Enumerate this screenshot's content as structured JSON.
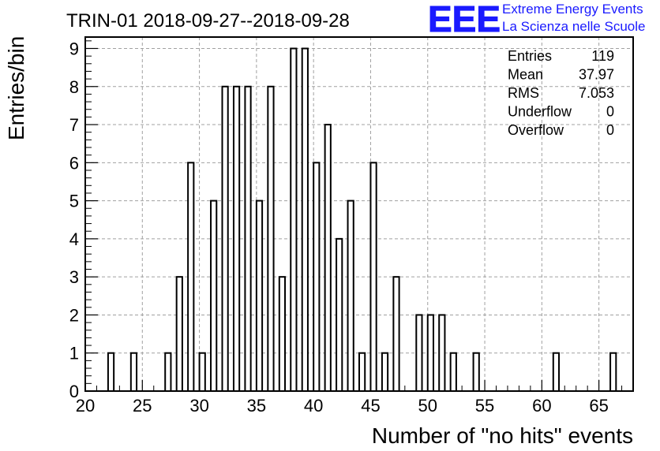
{
  "chart_data": {
    "type": "bar",
    "title": "TRIN-01 2018-09-27--2018-09-28",
    "xlabel": "Number of \"no hits\" events",
    "ylabel": "Entries/bin",
    "xlim": [
      20,
      68
    ],
    "ylim": [
      0,
      9.3
    ],
    "bin_width": 0.5,
    "grid": true,
    "x_ticks": [
      20,
      25,
      30,
      35,
      40,
      45,
      50,
      55,
      60,
      65
    ],
    "y_ticks": [
      0,
      1,
      2,
      3,
      4,
      5,
      6,
      7,
      8,
      9
    ],
    "bins": [
      {
        "x": 22,
        "count": 1
      },
      {
        "x": 24,
        "count": 1
      },
      {
        "x": 27,
        "count": 1
      },
      {
        "x": 28,
        "count": 3
      },
      {
        "x": 29,
        "count": 6
      },
      {
        "x": 30,
        "count": 1
      },
      {
        "x": 31,
        "count": 5
      },
      {
        "x": 32,
        "count": 8
      },
      {
        "x": 33,
        "count": 8
      },
      {
        "x": 34,
        "count": 8
      },
      {
        "x": 35,
        "count": 5
      },
      {
        "x": 36,
        "count": 8
      },
      {
        "x": 37,
        "count": 3
      },
      {
        "x": 38,
        "count": 9
      },
      {
        "x": 39,
        "count": 9
      },
      {
        "x": 40,
        "count": 6
      },
      {
        "x": 41,
        "count": 7
      },
      {
        "x": 42,
        "count": 4
      },
      {
        "x": 43,
        "count": 5
      },
      {
        "x": 44,
        "count": 1
      },
      {
        "x": 45,
        "count": 6
      },
      {
        "x": 46,
        "count": 1
      },
      {
        "x": 47,
        "count": 3
      },
      {
        "x": 49,
        "count": 2
      },
      {
        "x": 50,
        "count": 2
      },
      {
        "x": 51,
        "count": 2
      },
      {
        "x": 52,
        "count": 1
      },
      {
        "x": 54,
        "count": 1
      },
      {
        "x": 61,
        "count": 1
      },
      {
        "x": 66,
        "count": 1
      }
    ],
    "stats": [
      {
        "label": "Entries",
        "value": "119"
      },
      {
        "label": "Mean",
        "value": "37.97"
      },
      {
        "label": "RMS",
        "value": "7.053"
      },
      {
        "label": "Underflow",
        "value": "0"
      },
      {
        "label": "Overflow",
        "value": "0"
      }
    ]
  },
  "logo": {
    "mark": "EEE",
    "line1": "Extreme Energy Events",
    "line2": "La Scienza nelle Scuole",
    "color": "#1a1aff"
  }
}
